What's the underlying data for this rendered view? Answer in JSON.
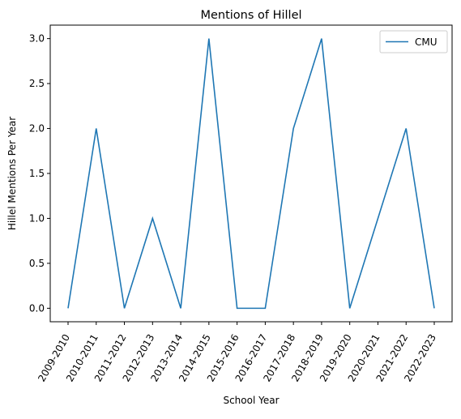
{
  "chart_data": {
    "type": "line",
    "title": "Mentions of Hillel",
    "xlabel": "School Year",
    "ylabel": "Hillel Mentions Per Year",
    "categories": [
      "2009-2010",
      "2010-2011",
      "2011-2012",
      "2012-2013",
      "2013-2014",
      "2014-2015",
      "2015-2016",
      "2016-2017",
      "2017-2018",
      "2018-2019",
      "2019-2020",
      "2020-2021",
      "2021-2022",
      "2022-2023"
    ],
    "series": [
      {
        "name": "CMU",
        "color": "#1f77b4",
        "values": [
          0,
          2,
          0,
          1,
          0,
          3,
          0,
          0,
          2,
          3,
          0,
          1,
          2,
          0
        ]
      }
    ],
    "ylim": [
      -0.15,
      3.15
    ],
    "yticks": [
      0.0,
      0.5,
      1.0,
      1.5,
      2.0,
      2.5,
      3.0
    ],
    "ytick_labels": [
      "0.0",
      "0.5",
      "1.0",
      "1.5",
      "2.0",
      "2.5",
      "3.0"
    ],
    "grid": false,
    "legend": {
      "position": "top-right",
      "entries": [
        "CMU"
      ]
    }
  }
}
